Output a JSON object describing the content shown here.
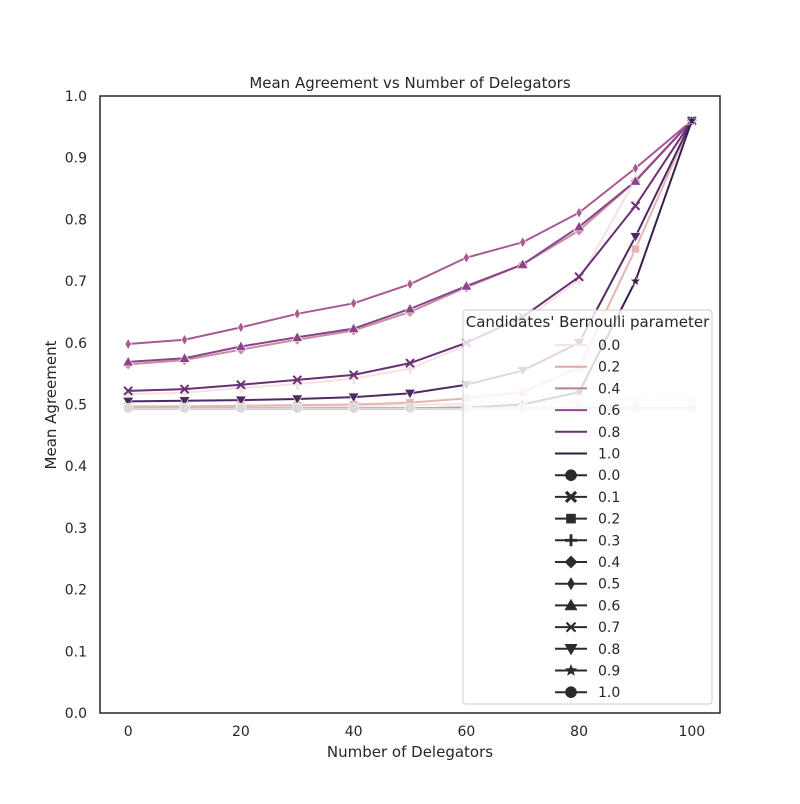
{
  "chart_data": {
    "type": "line",
    "title": "Mean Agreement vs Number of Delegators",
    "xlabel": "Number of Delegators",
    "ylabel": "Mean Agreement",
    "xlim": [
      -5,
      105
    ],
    "ylim": [
      0.0,
      1.0
    ],
    "x_ticks": [
      "0",
      "20",
      "40",
      "60",
      "80",
      "100"
    ],
    "y_ticks": [
      "0.0",
      "0.1",
      "0.2",
      "0.3",
      "0.4",
      "0.5",
      "0.6",
      "0.7",
      "0.8",
      "0.9",
      "1.0"
    ],
    "grid": false,
    "x": [
      0,
      10,
      20,
      30,
      40,
      50,
      60,
      70,
      80,
      90,
      100
    ],
    "series": [
      {
        "name": "0.0",
        "marker": "circle",
        "color": "#2d1e3e",
        "values": [
          0.494,
          0.494,
          0.494,
          0.494,
          0.494,
          0.494,
          0.494,
          0.494,
          0.494,
          0.494,
          0.494
        ]
      },
      {
        "name": "0.1",
        "marker": "x",
        "color": "#f1e4e3",
        "values": [
          0.497,
          0.497,
          0.497,
          0.497,
          0.498,
          0.499,
          0.501,
          0.503,
          0.505,
          0.507,
          0.508
        ]
      },
      {
        "name": "0.2",
        "marker": "square",
        "color": "#e8b4b1",
        "values": [
          0.497,
          0.497,
          0.498,
          0.499,
          0.5,
          0.503,
          0.51,
          0.52,
          0.56,
          0.752,
          0.96
        ]
      },
      {
        "name": "0.3",
        "marker": "plus",
        "color": "#f3e3e2",
        "values": [
          0.517,
          0.519,
          0.527,
          0.533,
          0.542,
          0.558,
          0.596,
          0.635,
          0.702,
          0.865,
          0.96
        ]
      },
      {
        "name": "0.4",
        "marker": "diamond",
        "color": "#c98aa8",
        "values": [
          0.565,
          0.572,
          0.589,
          0.605,
          0.62,
          0.65,
          0.69,
          0.727,
          0.782,
          0.862,
          0.96
        ]
      },
      {
        "name": "0.5",
        "marker": "thin-diamond",
        "color": "#a95a92",
        "values": [
          0.598,
          0.605,
          0.625,
          0.647,
          0.664,
          0.695,
          0.738,
          0.763,
          0.811,
          0.883,
          0.96
        ]
      },
      {
        "name": "0.6",
        "marker": "triangle-up",
        "color": "#8b4487",
        "values": [
          0.569,
          0.575,
          0.594,
          0.609,
          0.623,
          0.655,
          0.692,
          0.727,
          0.788,
          0.862,
          0.96
        ]
      },
      {
        "name": "0.7",
        "marker": "x-thin",
        "color": "#6a2f75",
        "values": [
          0.522,
          0.525,
          0.532,
          0.54,
          0.548,
          0.567,
          0.6,
          0.642,
          0.707,
          0.822,
          0.96
        ]
      },
      {
        "name": "0.8",
        "marker": "triangle-down",
        "color": "#4e2a63",
        "values": [
          0.505,
          0.506,
          0.507,
          0.509,
          0.512,
          0.518,
          0.532,
          0.555,
          0.6,
          0.772,
          0.96
        ]
      },
      {
        "name": "0.9",
        "marker": "star",
        "color": "#3a1f4d",
        "values": [
          0.494,
          0.494,
          0.494,
          0.494,
          0.494,
          0.494,
          0.495,
          0.5,
          0.52,
          0.7,
          0.96
        ]
      },
      {
        "name": "1.0",
        "marker": "circle",
        "color": "#d9d9d9",
        "values": [
          0.494,
          0.494,
          0.494,
          0.494,
          0.494,
          0.494,
          0.494,
          0.494,
          0.494,
          0.494,
          0.494
        ]
      }
    ],
    "legend": {
      "title": "Candidates' Bernoulli parameter",
      "placement": "lower-right",
      "color_entries": [
        {
          "label": "0.0",
          "color": "#f4e6e4"
        },
        {
          "label": "0.2",
          "color": "#e3a7a9"
        },
        {
          "label": "0.4",
          "color": "#bc7d9d"
        },
        {
          "label": "0.6",
          "color": "#8e4c8c"
        },
        {
          "label": "0.8",
          "color": "#62336f"
        },
        {
          "label": "1.0",
          "color": "#2e1e3b"
        }
      ],
      "marker_entries": [
        {
          "label": "0.0",
          "marker": "circle"
        },
        {
          "label": "0.1",
          "marker": "x"
        },
        {
          "label": "0.2",
          "marker": "square"
        },
        {
          "label": "0.3",
          "marker": "plus"
        },
        {
          "label": "0.4",
          "marker": "diamond"
        },
        {
          "label": "0.5",
          "marker": "thin-diamond"
        },
        {
          "label": "0.6",
          "marker": "triangle-up"
        },
        {
          "label": "0.7",
          "marker": "x-thin"
        },
        {
          "label": "0.8",
          "marker": "triangle-down"
        },
        {
          "label": "0.9",
          "marker": "star"
        },
        {
          "label": "1.0",
          "marker": "circle"
        }
      ],
      "marker_color": "#2b2b2b"
    }
  }
}
